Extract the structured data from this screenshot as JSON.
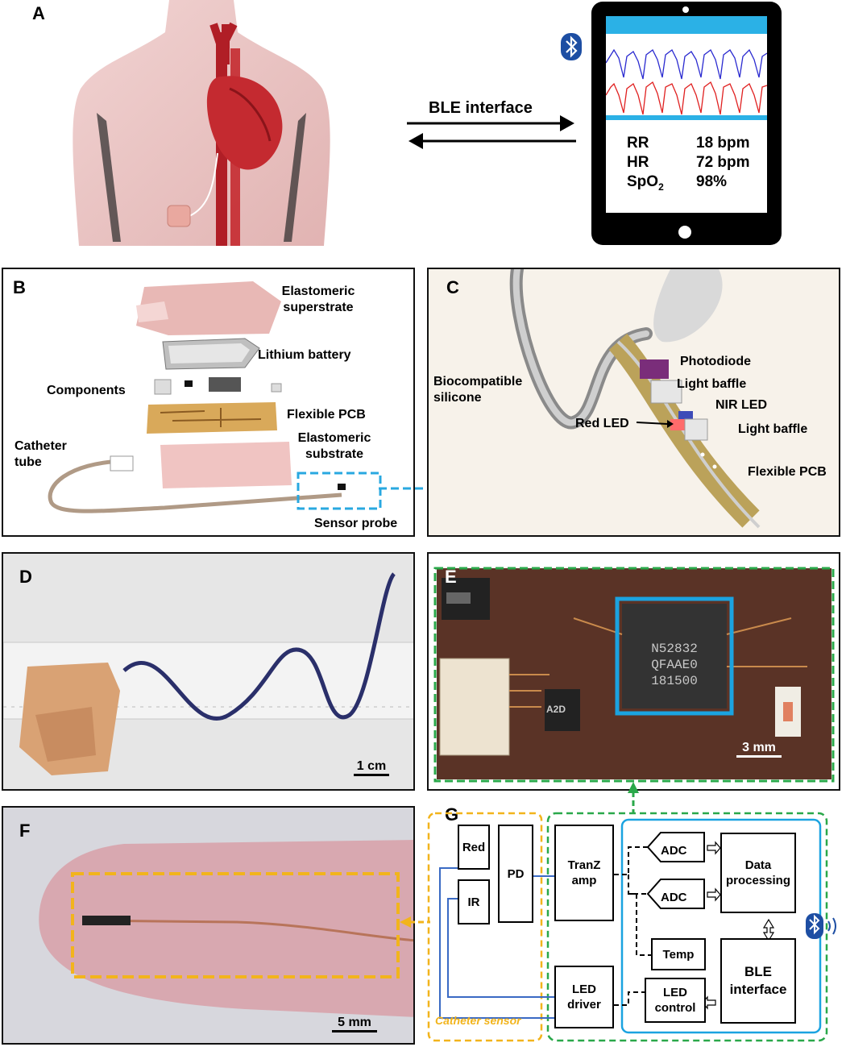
{
  "panels": {
    "A": "A",
    "B": "B",
    "C": "C",
    "D": "D",
    "E": "E",
    "F": "F",
    "G": "G"
  },
  "panel_a": {
    "ble_label": "BLE interface",
    "tablet": {
      "rows": [
        {
          "key": "RR",
          "value": "18 bpm"
        },
        {
          "key": "HR",
          "value": "72 bpm"
        },
        {
          "key": "SpO",
          "sub": "2",
          "value": "98%"
        }
      ],
      "accent_color": "#2bb1e6",
      "wave_colors": [
        "#2a2ad0",
        "#e02020"
      ]
    }
  },
  "panel_b": {
    "superstrate": "Elastomeric superstrate",
    "battery": "Lithium battery",
    "components": "Components",
    "pcb": "Flexible PCB",
    "substrate": "Elastomeric substrate",
    "catheter": "Catheter tube",
    "probe": "Sensor probe"
  },
  "panel_c": {
    "silicone": "Biocompatible silicone",
    "photodiode": "Photodiode",
    "baffle1": "Light baffle",
    "nir": "NIR LED",
    "red_led": "Red LED",
    "baffle2": "Light baffle",
    "pcb": "Flexible PCB"
  },
  "panel_d": {
    "scale": "1 cm"
  },
  "panel_e": {
    "chip_lines": [
      "N52832",
      "QFAAE0",
      "181500"
    ],
    "small_chip": "A2D",
    "scale": "3 mm"
  },
  "panel_f": {
    "scale": "5 mm"
  },
  "panel_g": {
    "red": "Red",
    "ir": "IR",
    "pd": "PD",
    "tranz": "TranZ amp",
    "led_driver": "LED driver",
    "adc1": "ADC",
    "adc2": "ADC",
    "data": "Data processing",
    "temp": "Temp",
    "ble": "BLE interface",
    "led_control": "LED control",
    "catheter_sensor": "Catheter sensor"
  },
  "colors": {
    "green_dash": "#2aa84a",
    "yellow_dash": "#f2b41c",
    "blue_dash": "#29a8e0",
    "blue_box": "#1ba3e0"
  }
}
